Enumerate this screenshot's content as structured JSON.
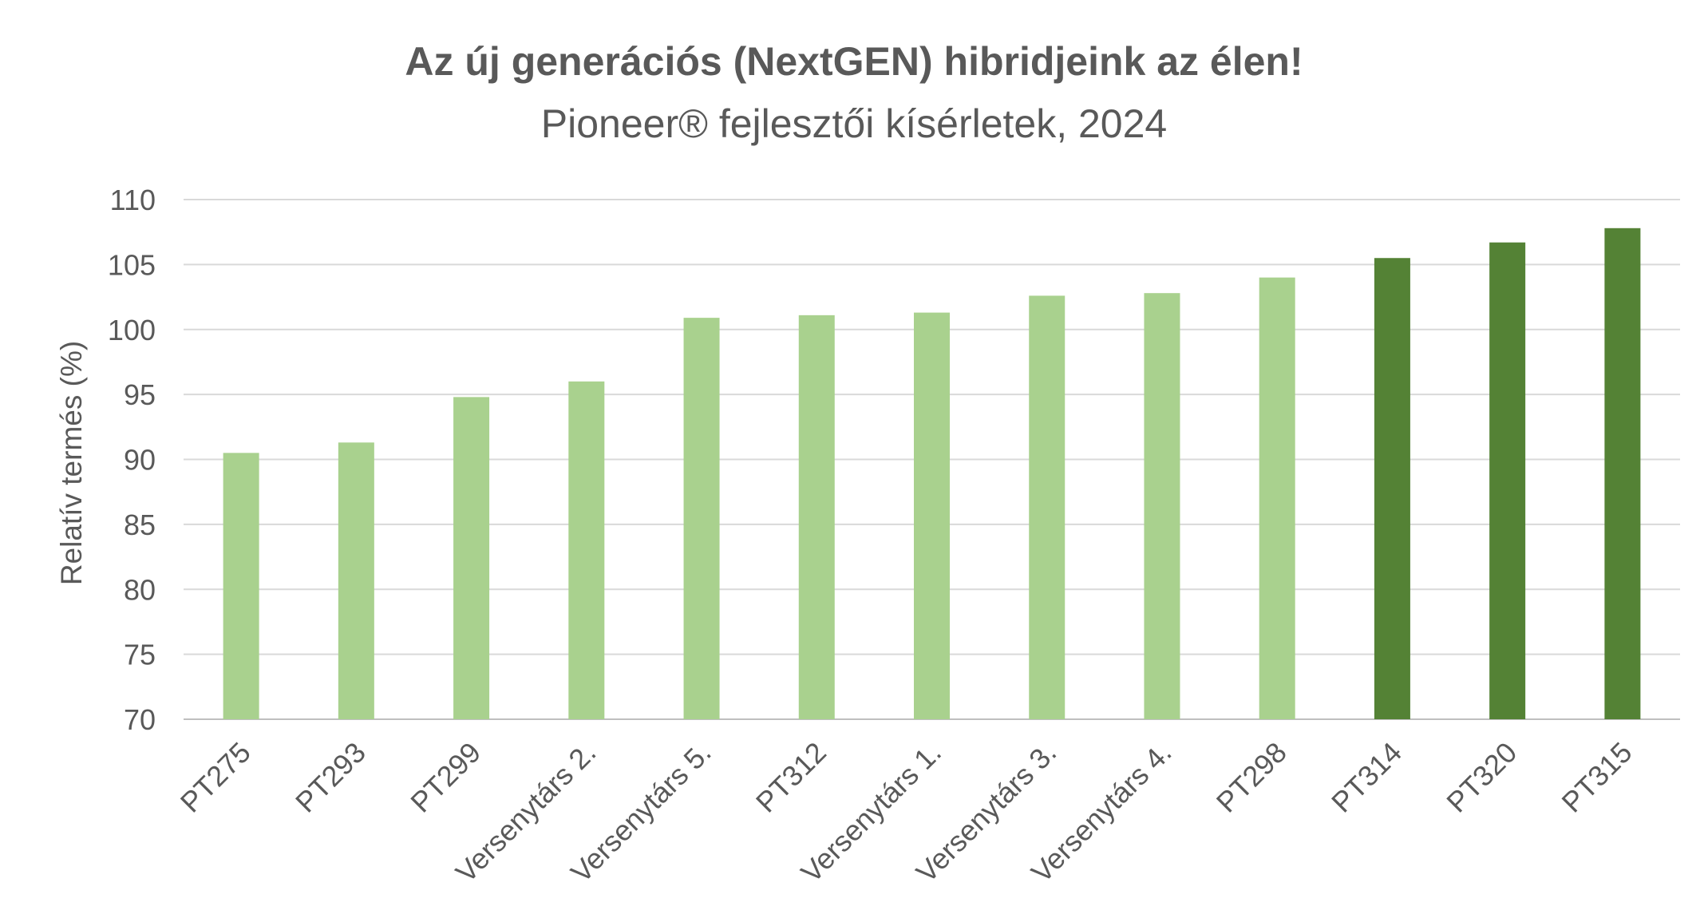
{
  "chart_data": {
    "type": "bar",
    "title": "Az új generációs (NextGEN) hibridjeink az élen!",
    "subtitle": "Pioneer® fejlesztői kísérletek, 2024",
    "xlabel": "",
    "ylabel": "Relatív termés (%)",
    "ylim": [
      70,
      110
    ],
    "yticks": [
      70,
      75,
      80,
      85,
      90,
      95,
      100,
      105,
      110
    ],
    "grid": true,
    "categories": [
      "PT275",
      "PT293",
      "PT299",
      "Versenytárs 2.",
      "Versenytárs 5.",
      "PT312",
      "Versenytárs 1.",
      "Versenytárs 3.",
      "Versenytárs 4.",
      "PT298",
      "PT314",
      "PT320",
      "PT315"
    ],
    "values": [
      90.5,
      91.3,
      94.8,
      96.0,
      100.9,
      101.1,
      101.3,
      102.6,
      102.8,
      104.0,
      105.5,
      106.7,
      107.8
    ],
    "bar_colors": [
      "#a9d18e",
      "#a9d18e",
      "#a9d18e",
      "#a9d18e",
      "#a9d18e",
      "#a9d18e",
      "#a9d18e",
      "#a9d18e",
      "#a9d18e",
      "#a9d18e",
      "#548235",
      "#548235",
      "#548235"
    ]
  }
}
